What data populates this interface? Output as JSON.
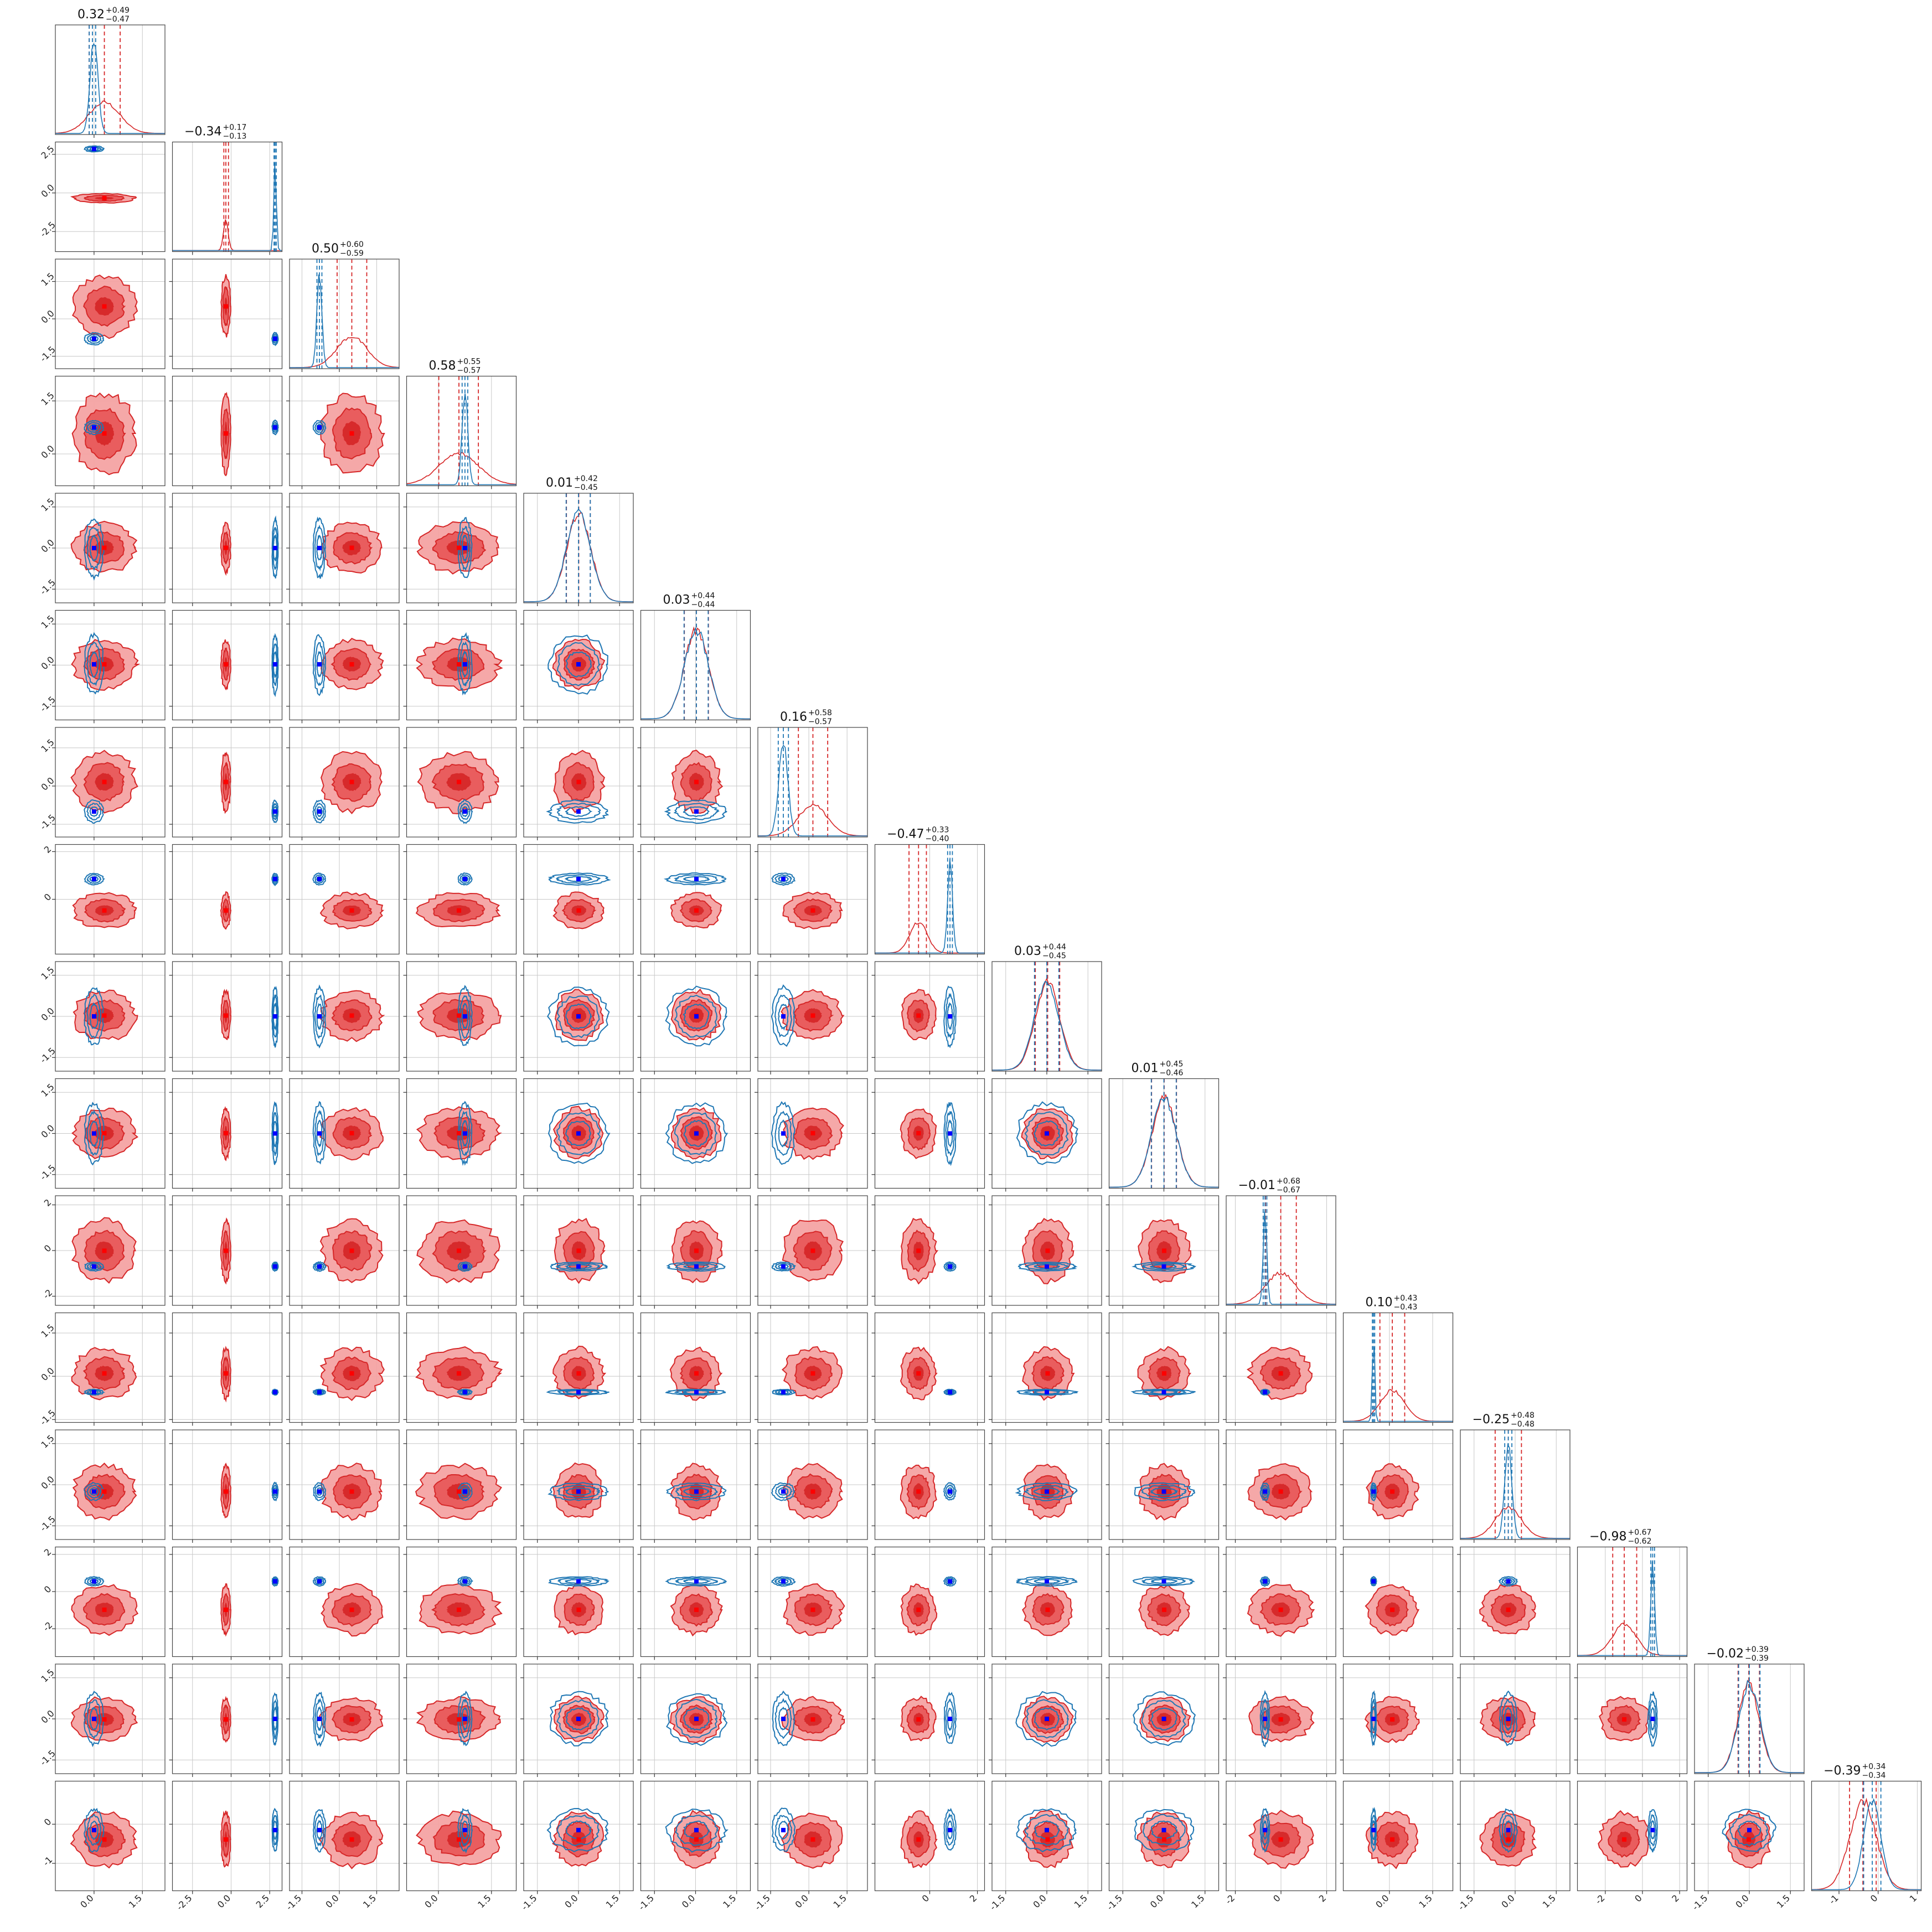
{
  "chart_data": {
    "type": "corner",
    "n_params": 16,
    "series": [
      {
        "name": "",
        "color": "#d62728"
      },
      {
        "name": "",
        "color": "#1f77b4"
      }
    ],
    "grid": true,
    "marker_colors": {
      "red": "#ff0000",
      "blue": "#0000ff"
    },
    "titles": [
      {
        "value": "0.32",
        "plus": "+0.49",
        "minus": "−0.47"
      },
      {
        "value": "−0.34",
        "plus": "+0.17",
        "minus": "−0.13"
      },
      {
        "value": "0.50",
        "plus": "+0.60",
        "minus": "−0.59"
      },
      {
        "value": "0.58",
        "plus": "+0.55",
        "minus": "−0.57"
      },
      {
        "value": "0.01",
        "plus": "+0.42",
        "minus": "−0.45"
      },
      {
        "value": "0.03",
        "plus": "+0.44",
        "minus": "−0.44"
      },
      {
        "value": "0.16",
        "plus": "+0.58",
        "minus": "−0.57"
      },
      {
        "value": "−0.47",
        "plus": "+0.33",
        "minus": "−0.40"
      },
      {
        "value": "0.03",
        "plus": "+0.44",
        "minus": "−0.45"
      },
      {
        "value": "0.01",
        "plus": "+0.45",
        "minus": "−0.46"
      },
      {
        "value": "−0.01",
        "plus": "+0.68",
        "minus": "−0.67"
      },
      {
        "value": "0.10",
        "plus": "+0.43",
        "minus": "−0.43"
      },
      {
        "value": "−0.25",
        "plus": "+0.48",
        "minus": "−0.48"
      },
      {
        "value": "−0.98",
        "plus": "+0.67",
        "minus": "−0.62"
      },
      {
        "value": "−0.02",
        "plus": "+0.39",
        "minus": "−0.39"
      },
      {
        "value": "−0.39",
        "plus": "+0.34",
        "minus": "−0.34"
      }
    ],
    "params": [
      {
        "range": [
          -1.2,
          2.2
        ],
        "y_ticks": [],
        "x_ticks": [
          "0.0",
          "1.5"
        ],
        "x_tick_vals": [
          0,
          1.5
        ],
        "red": {
          "mean": 0.32,
          "sd": 0.48
        },
        "blue": {
          "mean": 0.0,
          "sd": 0.12
        },
        "red_q": [
          -0.15,
          0.32,
          0.81
        ],
        "blue_q": [
          -0.15,
          -0.05,
          0.05
        ]
      },
      {
        "range": [
          -3.8,
          3.3
        ],
        "y_ticks": [
          "-2.5",
          "0.0",
          "2.5"
        ],
        "y_tick_vals": [
          -2.5,
          0,
          2.5
        ],
        "x_ticks": [
          "-2.5",
          "0.0",
          "2.5"
        ],
        "x_tick_vals": [
          -2.5,
          0,
          2.5
        ],
        "red": {
          "mean": -0.34,
          "sd": 0.15
        },
        "blue": {
          "mean": 2.85,
          "sd": 0.08
        },
        "red_q": [
          -0.47,
          -0.34,
          -0.17
        ],
        "blue_q": [
          2.78,
          2.85,
          2.93
        ]
      },
      {
        "range": [
          -2.0,
          2.4
        ],
        "y_ticks": [
          "-1.5",
          "0.0",
          "1.5"
        ],
        "y_tick_vals": [
          -1.5,
          0,
          1.5
        ],
        "x_ticks": [
          "-1.5",
          "0.0",
          "1.5"
        ],
        "x_tick_vals": [
          -1.5,
          0,
          1.5
        ],
        "red": {
          "mean": 0.5,
          "sd": 0.6
        },
        "blue": {
          "mean": -0.8,
          "sd": 0.1
        },
        "red_q": [
          -0.09,
          0.5,
          1.1
        ],
        "blue_q": [
          -0.9,
          -0.8,
          -0.7
        ]
      },
      {
        "range": [
          -0.9,
          2.2
        ],
        "y_ticks": [
          "0.0",
          "1.5"
        ],
        "y_tick_vals": [
          0,
          1.5
        ],
        "x_ticks": [
          "0.0",
          "1.5"
        ],
        "x_tick_vals": [
          0,
          1.5
        ],
        "red": {
          "mean": 0.58,
          "sd": 0.56
        },
        "blue": {
          "mean": 0.75,
          "sd": 0.08
        },
        "red_q": [
          0.01,
          0.58,
          1.13
        ],
        "blue_q": [
          0.67,
          0.75,
          0.83
        ]
      },
      {
        "range": [
          -2.0,
          2.0
        ],
        "y_ticks": [
          "-1.5",
          "0.0",
          "1.5"
        ],
        "y_tick_vals": [
          -1.5,
          0,
          1.5
        ],
        "x_ticks": [
          "-1.5",
          "0.0",
          "1.5"
        ],
        "x_tick_vals": [
          -1.5,
          0,
          1.5
        ],
        "red": {
          "mean": 0.01,
          "sd": 0.44
        },
        "blue": {
          "mean": 0.0,
          "sd": 0.44
        },
        "red_q": [
          -0.44,
          0.01,
          0.43
        ],
        "blue_q": [
          -0.45,
          0.0,
          0.43
        ]
      },
      {
        "range": [
          -2.0,
          2.0
        ],
        "y_ticks": [
          "-1.5",
          "0.0",
          "1.5"
        ],
        "y_tick_vals": [
          -1.5,
          0,
          1.5
        ],
        "x_ticks": [
          "-1.5",
          "0.0",
          "1.5"
        ],
        "x_tick_vals": [
          -1.5,
          0,
          1.5
        ],
        "red": {
          "mean": 0.03,
          "sd": 0.44
        },
        "blue": {
          "mean": 0.03,
          "sd": 0.44
        },
        "red_q": [
          -0.41,
          0.03,
          0.47
        ],
        "blue_q": [
          -0.42,
          0.03,
          0.46
        ]
      },
      {
        "range": [
          -2.0,
          2.3
        ],
        "y_ticks": [
          "-1.5",
          "0.0",
          "1.5"
        ],
        "y_tick_vals": [
          -1.5,
          0,
          1.5
        ],
        "x_ticks": [
          "-1.5",
          "0.0",
          "1.5"
        ],
        "x_tick_vals": [
          -1.5,
          0,
          1.5
        ],
        "red": {
          "mean": 0.16,
          "sd": 0.57
        },
        "blue": {
          "mean": -1.0,
          "sd": 0.18
        },
        "red_q": [
          -0.41,
          0.16,
          0.74
        ],
        "blue_q": [
          -1.2,
          -1.0,
          -0.8
        ]
      },
      {
        "range": [
          -2.3,
          2.3
        ],
        "y_ticks": [
          "0",
          "2"
        ],
        "y_tick_vals": [
          0,
          2
        ],
        "x_ticks": [
          "0",
          "2"
        ],
        "x_tick_vals": [
          0,
          2
        ],
        "red": {
          "mean": -0.47,
          "sd": 0.36
        },
        "blue": {
          "mean": 0.85,
          "sd": 0.1
        },
        "red_q": [
          -0.87,
          -0.47,
          -0.14
        ],
        "blue_q": [
          0.75,
          0.85,
          0.95
        ]
      },
      {
        "range": [
          -2.0,
          2.0
        ],
        "y_ticks": [
          "-1.5",
          "0.0",
          "1.5"
        ],
        "y_tick_vals": [
          -1.5,
          0,
          1.5
        ],
        "x_ticks": [
          "-1.5",
          "0.0",
          "1.5"
        ],
        "x_tick_vals": [
          -1.5,
          0,
          1.5
        ],
        "red": {
          "mean": 0.03,
          "sd": 0.44
        },
        "blue": {
          "mean": 0.0,
          "sd": 0.44
        },
        "red_q": [
          -0.42,
          0.03,
          0.47
        ],
        "blue_q": [
          -0.45,
          0.0,
          0.44
        ]
      },
      {
        "range": [
          -2.0,
          2.0
        ],
        "y_ticks": [
          "-1.5",
          "0.0",
          "1.5"
        ],
        "y_tick_vals": [
          -1.5,
          0,
          1.5
        ],
        "x_ticks": [
          "-1.5",
          "0.0",
          "1.5"
        ],
        "x_tick_vals": [
          -1.5,
          0,
          1.5
        ],
        "red": {
          "mean": 0.01,
          "sd": 0.45
        },
        "blue": {
          "mean": 0.0,
          "sd": 0.45
        },
        "red_q": [
          -0.45,
          0.01,
          0.46
        ],
        "blue_q": [
          -0.46,
          0.0,
          0.45
        ]
      },
      {
        "range": [
          -2.4,
          2.4
        ],
        "y_ticks": [
          "-2",
          "0",
          "2"
        ],
        "y_tick_vals": [
          -2,
          0,
          2
        ],
        "x_ticks": [
          "-2",
          "0",
          "2"
        ],
        "x_tick_vals": [
          -2,
          0,
          2
        ],
        "red": {
          "mean": -0.01,
          "sd": 0.67
        },
        "blue": {
          "mean": -0.7,
          "sd": 0.08
        },
        "red_q": [
          -0.68,
          -0.01,
          0.67
        ],
        "blue_q": [
          -0.78,
          -0.7,
          -0.62
        ]
      },
      {
        "range": [
          -1.6,
          2.2
        ],
        "y_ticks": [
          "-1.5",
          "0.0",
          "1.5"
        ],
        "y_tick_vals": [
          -1.5,
          0,
          1.5
        ],
        "x_ticks": [
          "0.0",
          "1.5"
        ],
        "x_tick_vals": [
          0,
          1.5
        ],
        "red": {
          "mean": 0.1,
          "sd": 0.43
        },
        "blue": {
          "mean": -0.55,
          "sd": 0.04
        },
        "red_q": [
          -0.33,
          0.1,
          0.53
        ],
        "blue_q": [
          -0.59,
          -0.55,
          -0.51
        ]
      },
      {
        "range": [
          -2.0,
          2.0
        ],
        "y_ticks": [
          "-1.5",
          "0.0",
          "1.5"
        ],
        "y_tick_vals": [
          -1.5,
          0,
          1.5
        ],
        "x_ticks": [
          "-1.5",
          "0.0",
          "1.5"
        ],
        "x_tick_vals": [
          -1.5,
          0,
          1.5
        ],
        "red": {
          "mean": -0.25,
          "sd": 0.48
        },
        "blue": {
          "mean": -0.25,
          "sd": 0.13
        },
        "red_q": [
          -0.73,
          -0.25,
          0.23
        ],
        "blue_q": [
          -0.38,
          -0.25,
          -0.12
        ]
      },
      {
        "range": [
          -3.5,
          2.4
        ],
        "y_ticks": [
          "-2",
          "0",
          "2"
        ],
        "y_tick_vals": [
          -2,
          0,
          2
        ],
        "x_ticks": [
          "-2",
          "0",
          "2"
        ],
        "x_tick_vals": [
          -2,
          0,
          2
        ],
        "red": {
          "mean": -0.98,
          "sd": 0.65
        },
        "blue": {
          "mean": 0.55,
          "sd": 0.1
        },
        "red_q": [
          -1.6,
          -0.98,
          -0.31
        ],
        "blue_q": [
          0.45,
          0.55,
          0.65
        ]
      },
      {
        "range": [
          -2.0,
          2.0
        ],
        "y_ticks": [
          "-1.5",
          "0.0",
          "1.5"
        ],
        "y_tick_vals": [
          -1.5,
          0,
          1.5
        ],
        "x_ticks": [
          "-1.5",
          "0.0",
          "1.5"
        ],
        "x_tick_vals": [
          -1.5,
          0,
          1.5
        ],
        "red": {
          "mean": -0.02,
          "sd": 0.39
        },
        "blue": {
          "mean": 0.0,
          "sd": 0.39
        },
        "red_q": [
          -0.41,
          -0.02,
          0.37
        ],
        "blue_q": [
          -0.39,
          0.0,
          0.39
        ]
      },
      {
        "range": [
          -1.7,
          1.1
        ],
        "y_ticks": [
          "-1",
          "0"
        ],
        "y_tick_vals": [
          -1,
          0
        ],
        "x_ticks": [
          "-1",
          "0",
          "1"
        ],
        "x_tick_vals": [
          -1,
          0,
          1
        ],
        "red": {
          "mean": -0.39,
          "sd": 0.34
        },
        "blue": {
          "mean": -0.15,
          "sd": 0.22
        },
        "red_q": [
          -0.73,
          -0.39,
          -0.05
        ],
        "blue_q": [
          -0.37,
          -0.15,
          0.07
        ]
      }
    ]
  }
}
